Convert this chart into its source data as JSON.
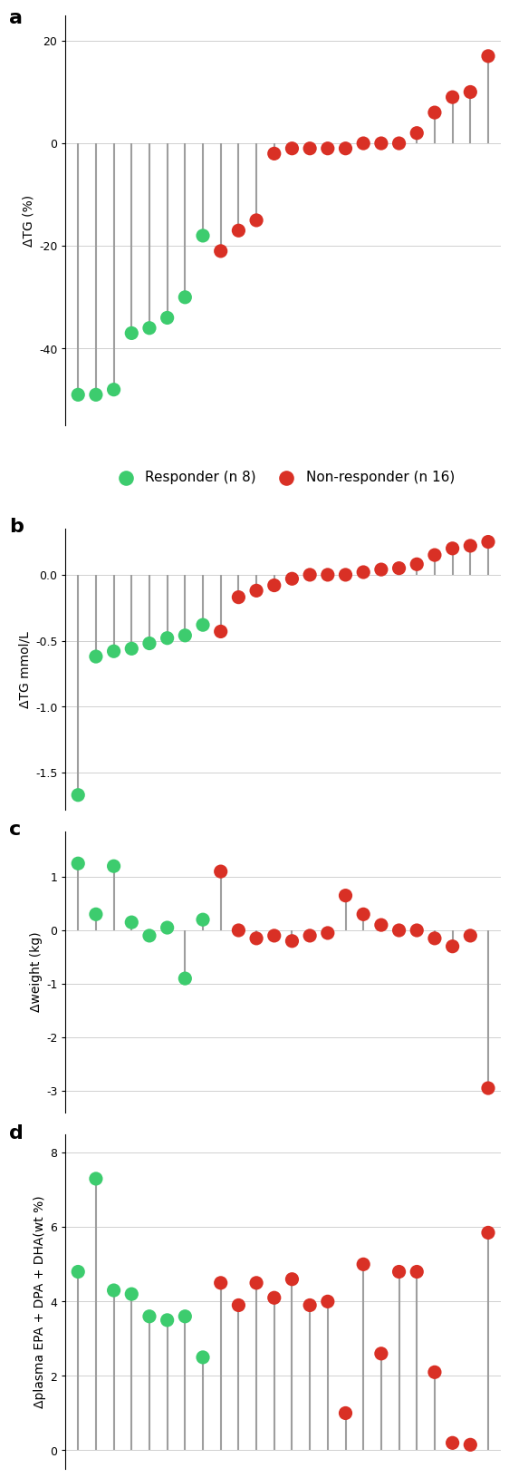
{
  "panel_a": {
    "ylabel": "ΔTG (%)",
    "ylim": [
      -55,
      25
    ],
    "yticks": [
      -40,
      -20,
      0,
      20
    ],
    "baseline": 0,
    "responders": [
      -49,
      -49,
      -48,
      -37,
      -36,
      -34,
      -30,
      -18
    ],
    "non_responders": [
      -21,
      -17,
      -15,
      -2,
      -1,
      -1,
      -1,
      -1,
      0,
      0,
      0,
      2,
      6,
      9,
      10,
      17
    ]
  },
  "panel_b": {
    "ylabel": "ΔTG mmol/L",
    "ylim": [
      -1.78,
      0.35
    ],
    "yticks": [
      -1.5,
      -1.0,
      -0.5,
      0.0
    ],
    "baseline": 0,
    "responders": [
      -1.67,
      -0.62,
      -0.58,
      -0.56,
      -0.52,
      -0.48,
      -0.46,
      -0.38
    ],
    "non_responders": [
      -0.43,
      -0.17,
      -0.12,
      -0.08,
      -0.03,
      0.0,
      0.0,
      0.0,
      0.02,
      0.04,
      0.05,
      0.08,
      0.15,
      0.2,
      0.22,
      0.25
    ]
  },
  "panel_c": {
    "ylabel": "Δweight (kg)",
    "ylim": [
      -3.4,
      1.85
    ],
    "yticks": [
      -3,
      -2,
      -1,
      0,
      1
    ],
    "baseline": 0,
    "responders": [
      1.25,
      0.3,
      1.2,
      0.15,
      -0.1,
      0.05,
      -0.9,
      0.2
    ],
    "non_responders": [
      1.1,
      0.0,
      -0.15,
      -0.1,
      -0.2,
      -0.1,
      -0.05,
      0.65,
      0.3,
      0.1,
      0.0,
      0.0,
      -0.15,
      -0.3,
      -0.1,
      -2.95
    ]
  },
  "panel_d": {
    "ylabel": "Δplasma EPA + DPA + DHA(wt %)",
    "ylim": [
      -0.5,
      8.5
    ],
    "yticks": [
      0,
      2,
      4,
      6,
      8
    ],
    "baseline": 0,
    "responders": [
      4.8,
      7.3,
      4.3,
      4.2,
      3.6,
      3.5,
      3.6,
      2.5
    ],
    "non_responders": [
      4.5,
      3.9,
      4.5,
      4.1,
      4.6,
      3.9,
      4.0,
      1.0,
      5.0,
      2.6,
      4.8,
      4.8,
      2.1,
      0.2,
      0.15,
      5.85
    ]
  },
  "green_color": "#3dcc6e",
  "red_color": "#d93025",
  "stem_color": "#9e9e9e",
  "legend_fontsize": 11,
  "label_fontsize": 10,
  "tick_fontsize": 9,
  "panel_label_fontsize": 16
}
